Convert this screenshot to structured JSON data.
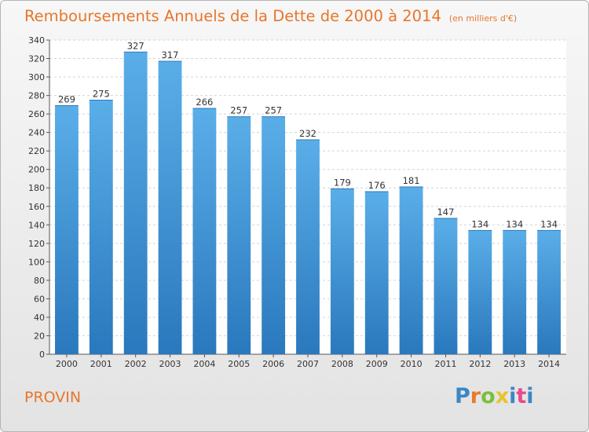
{
  "chart_data": {
    "type": "bar",
    "title": "Remboursements Annuels de la Dette de 2000 à 2014",
    "subtitle": "(en milliers d'€)",
    "categories": [
      "2000",
      "2001",
      "2002",
      "2003",
      "2004",
      "2005",
      "2006",
      "2007",
      "2008",
      "2009",
      "2010",
      "2011",
      "2012",
      "2013",
      "2014"
    ],
    "values": [
      269,
      275,
      327,
      317,
      266,
      257,
      257,
      232,
      179,
      176,
      181,
      147,
      134,
      134,
      134
    ],
    "ylim": [
      0,
      340
    ],
    "ytick_step": 20,
    "grid": true,
    "colors": {
      "bar_top": "#5aaee8",
      "bar_bottom": "#2a78bd",
      "title": "#e8762a"
    }
  },
  "footer": {
    "commune": "PROVIN",
    "brand": "Proxiti",
    "brand_colors": [
      "#3a86c8",
      "#e87a2a",
      "#7bbf3a",
      "#e8c42a",
      "#3a86c8",
      "#e84a8a",
      "#3a86c8"
    ]
  }
}
